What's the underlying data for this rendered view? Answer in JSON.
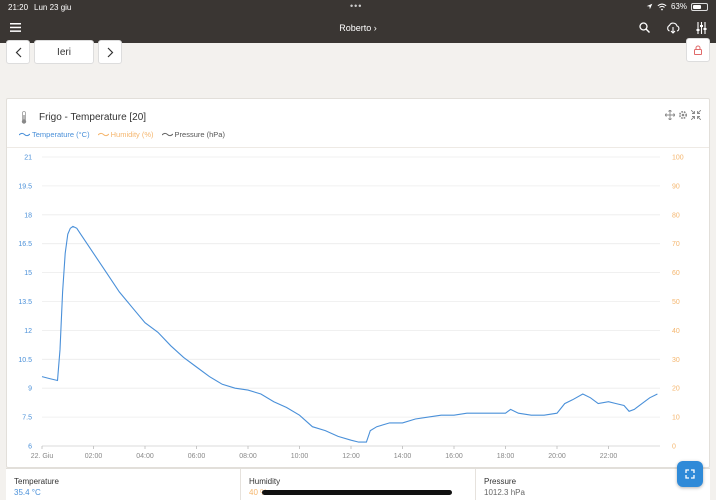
{
  "status_bar": {
    "time": "21:20",
    "date": "Lun 23 giu",
    "battery": "63%",
    "battery_level": 0.63
  },
  "app_bar": {
    "title": "Roberto",
    "title_chevron": "›"
  },
  "navigation": {
    "prev_icon": "chevron-left",
    "day_label": "Ieri",
    "next_icon": "chevron-right",
    "lock_icon": "lock"
  },
  "panel": {
    "title": "Frigo - Temperature [20]",
    "legend": [
      {
        "label": "Temperature (°C)",
        "color": "#4a90d9"
      },
      {
        "label": "Humidity (%)",
        "color": "#f5b66e"
      },
      {
        "label": "Pressure (hPa)",
        "color": "#666666"
      }
    ],
    "tool_icons": [
      "move-icon",
      "gear-icon",
      "shrink-icon"
    ]
  },
  "chart_data": {
    "type": "line",
    "x_ticks": [
      "22. Giu",
      "02:00",
      "04:00",
      "06:00",
      "08:00",
      "10:00",
      "12:00",
      "14:00",
      "16:00",
      "18:00",
      "20:00",
      "22:00"
    ],
    "y_left": {
      "ticks": [
        "6",
        "7.5",
        "9",
        "10.5",
        "12",
        "13.5",
        "15",
        "16.5",
        "18",
        "19.5",
        "21"
      ],
      "range": [
        6,
        21
      ]
    },
    "y_right": {
      "ticks": [
        "0",
        "10",
        "20",
        "30",
        "40",
        "50",
        "60",
        "70",
        "80",
        "90",
        "100"
      ],
      "range": [
        0,
        100
      ]
    },
    "grid": true,
    "series": [
      {
        "name": "Temperature (°C)",
        "color": "#4a90d9",
        "x_hours": [
          0,
          0.3,
          0.6,
          0.7,
          0.8,
          0.9,
          1.0,
          1.1,
          1.2,
          1.35,
          1.5,
          1.7,
          2.0,
          2.5,
          3.0,
          3.5,
          4.0,
          4.5,
          5.0,
          5.5,
          6.0,
          6.5,
          7.0,
          7.5,
          8.0,
          8.5,
          9.0,
          9.5,
          10.0,
          10.5,
          11.0,
          11.5,
          12.0,
          12.3,
          12.6,
          12.75,
          13.0,
          13.5,
          14.0,
          14.5,
          15.0,
          15.5,
          16.0,
          16.5,
          17.0,
          17.5,
          18.0,
          18.2,
          18.5,
          19.0,
          19.5,
          20.0,
          20.3,
          20.6,
          21.0,
          21.3,
          21.6,
          22.0,
          22.3,
          22.6,
          22.8,
          23.0,
          23.3,
          23.6,
          23.9
        ],
        "values": [
          9.6,
          9.5,
          9.4,
          11.0,
          14.0,
          16.0,
          17.0,
          17.3,
          17.4,
          17.3,
          17.0,
          16.6,
          16.0,
          15.0,
          14.0,
          13.2,
          12.4,
          11.9,
          11.2,
          10.6,
          10.1,
          9.6,
          9.2,
          9.0,
          8.9,
          8.7,
          8.3,
          8.0,
          7.6,
          7.0,
          6.8,
          6.5,
          6.3,
          6.2,
          6.2,
          6.8,
          7.0,
          7.2,
          7.2,
          7.4,
          7.5,
          7.6,
          7.6,
          7.7,
          7.7,
          7.7,
          7.7,
          7.9,
          7.7,
          7.6,
          7.6,
          7.7,
          8.2,
          8.4,
          8.7,
          8.5,
          8.2,
          8.3,
          8.2,
          8.1,
          7.8,
          7.9,
          8.2,
          8.5,
          8.7
        ]
      }
    ]
  },
  "footer": {
    "temperature": {
      "label": "Temperature",
      "value": "35.4 °C",
      "color": "#4a90d9"
    },
    "humidity": {
      "label": "Humidity",
      "value": "40 %",
      "color": "#f5b66e"
    },
    "pressure": {
      "label": "Pressure",
      "value": "1012.3 hPa",
      "color": "#666666"
    }
  },
  "fab": {
    "icon": "expand-icon"
  }
}
